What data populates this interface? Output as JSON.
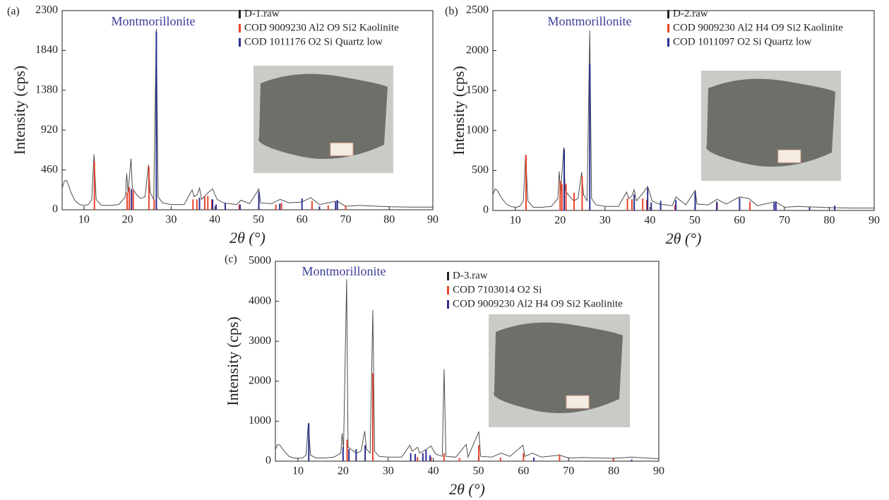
{
  "chart_data": [
    {
      "type": "line",
      "panel": "(a)",
      "annotation": "Montmorillonite",
      "xlabel": "2θ (°)",
      "ylabel": "Intensity (cps)",
      "xlim": [
        5,
        90
      ],
      "xticks": [
        10,
        20,
        30,
        40,
        50,
        60,
        70,
        80,
        90
      ],
      "ylim": [
        0,
        2300
      ],
      "yticks": [
        0,
        460,
        920,
        1380,
        1840,
        2300
      ],
      "series": [
        {
          "name": "D-1.raw",
          "color": "#222222",
          "style": "line",
          "x": [
            5,
            5.5,
            6,
            6.5,
            7,
            8,
            9,
            10,
            11,
            11.8,
            12.3,
            12.8,
            14,
            16,
            18,
            19.5,
            19.8,
            20.1,
            20.8,
            21.1,
            22,
            23,
            24,
            24.8,
            25.2,
            26,
            26.6,
            27,
            28,
            30,
            33,
            34.8,
            35.3,
            36,
            36.5,
            37,
            38.5,
            39.5,
            40.5,
            42,
            45,
            46,
            48,
            50.1,
            50.5,
            53,
            55,
            57,
            60,
            62,
            64,
            68,
            70,
            73,
            80,
            85,
            90
          ],
          "values": [
            250,
            330,
            340,
            280,
            200,
            100,
            60,
            50,
            60,
            120,
            640,
            120,
            50,
            50,
            60,
            150,
            420,
            200,
            590,
            250,
            180,
            130,
            150,
            520,
            200,
            120,
            2090,
            150,
            80,
            60,
            60,
            230,
            150,
            180,
            250,
            120,
            200,
            240,
            120,
            80,
            60,
            110,
            70,
            240,
            80,
            70,
            120,
            80,
            90,
            140,
            60,
            100,
            40,
            50,
            35,
            30,
            30
          ]
        },
        {
          "name": "COD 9009230 Al2 O9 Si2 Kaolinite",
          "color": "#e8432c",
          "style": "stick",
          "x": [
            12.4,
            19.9,
            20.4,
            21.3,
            24.9,
            26.1,
            35,
            35.9,
            37.7,
            38.4,
            39.3,
            45.6,
            54,
            55.3,
            62.3,
            66,
            70
          ],
          "values": [
            560,
            200,
            260,
            220,
            500,
            120,
            120,
            120,
            150,
            160,
            120,
            60,
            60,
            80,
            100,
            50,
            50
          ]
        },
        {
          "name": "COD 1011176 O2 Si Quartz low",
          "color": "#2b2f8f",
          "style": "stick",
          "x": [
            20.9,
            26.6,
            36.5,
            39.5,
            40.3,
            42.4,
            45.8,
            50.1,
            54.9,
            60,
            64,
            67.7,
            68.1
          ],
          "values": [
            240,
            2060,
            140,
            120,
            60,
            80,
            60,
            210,
            70,
            130,
            40,
            90,
            110
          ]
        }
      ]
    },
    {
      "type": "line",
      "panel": "(b)",
      "annotation": "Montmorillonite",
      "xlabel": "2θ (°)",
      "ylabel": "Intensity (cps)",
      "xlim": [
        5,
        90
      ],
      "xticks": [
        10,
        20,
        30,
        40,
        50,
        60,
        70,
        80,
        90
      ],
      "ylim": [
        0,
        2500
      ],
      "yticks": [
        0,
        500,
        1000,
        1500,
        2000,
        2500
      ],
      "series": [
        {
          "name": "D-2.raw",
          "color": "#222222",
          "style": "line",
          "x": [
            5,
            5.5,
            6,
            6.5,
            7,
            8,
            9,
            10,
            11,
            11.8,
            12.3,
            12.8,
            14,
            16,
            18,
            19.5,
            19.8,
            20.1,
            20.8,
            21.1,
            22,
            23,
            24,
            24.8,
            25.2,
            26,
            26.6,
            27,
            28,
            30,
            33,
            34.8,
            35.3,
            36,
            36.5,
            37,
            38.5,
            39.5,
            40.5,
            42,
            45,
            45.8,
            48,
            50.1,
            50.5,
            53,
            55,
            57,
            60,
            62,
            64,
            68,
            70,
            73,
            80,
            85,
            90
          ],
          "values": [
            200,
            270,
            250,
            200,
            150,
            80,
            50,
            40,
            50,
            120,
            700,
            120,
            40,
            40,
            50,
            150,
            490,
            200,
            790,
            250,
            180,
            120,
            150,
            480,
            200,
            120,
            2250,
            150,
            70,
            50,
            50,
            230,
            150,
            180,
            260,
            120,
            220,
            300,
            120,
            80,
            60,
            170,
            70,
            250,
            80,
            70,
            140,
            80,
            170,
            150,
            60,
            110,
            40,
            50,
            35,
            30,
            30
          ]
        },
        {
          "name": "COD 9009230 Al2 H4 O9 Si2 Kaolinite",
          "color": "#e8432c",
          "style": "stick",
          "x": [
            12.4,
            20,
            20.4,
            21.3,
            23.1,
            24.9,
            35,
            36,
            38.4,
            39.3,
            45.6,
            55,
            62.3
          ],
          "values": [
            690,
            370,
            330,
            330,
            220,
            430,
            150,
            140,
            150,
            130,
            70,
            90,
            110
          ]
        },
        {
          "name": "COD 1011097 O2 Si Quartz low",
          "color": "#2b2f8f",
          "style": "stick",
          "x": [
            20.9,
            26.6,
            36.5,
            39.5,
            40.3,
            42.4,
            45.8,
            50.1,
            54.9,
            60,
            67.7,
            68.1,
            75.6,
            81.2
          ],
          "values": [
            770,
            1840,
            200,
            280,
            100,
            120,
            130,
            240,
            110,
            160,
            100,
            110,
            40,
            60
          ]
        }
      ]
    },
    {
      "type": "line",
      "panel": "(c)",
      "annotation": "Montmorillonite",
      "xlabel": "2θ (°)",
      "ylabel": "Intensity (cps)",
      "xlim": [
        5,
        90
      ],
      "xticks": [
        10,
        20,
        30,
        40,
        50,
        60,
        70,
        80,
        90
      ],
      "ylim": [
        0,
        5000
      ],
      "yticks": [
        0,
        1000,
        2000,
        3000,
        4000,
        5000
      ],
      "series": [
        {
          "name": "D-3.raw",
          "color": "#222222",
          "style": "line",
          "x": [
            5,
            5.5,
            6,
            6.5,
            7,
            8,
            9,
            10,
            11,
            11.8,
            12.3,
            12.8,
            14,
            16,
            18,
            19.5,
            19.8,
            20.1,
            20.8,
            21.1,
            22,
            23,
            24,
            24.8,
            25.2,
            26,
            26.6,
            27,
            28,
            30,
            33,
            34.8,
            35.3,
            36,
            36.5,
            37,
            38.5,
            39.5,
            40.5,
            42,
            42.4,
            42.8,
            45,
            47.3,
            47.7,
            50.1,
            50.5,
            53,
            55,
            57,
            59.9,
            60.3,
            62,
            64,
            68,
            70,
            73,
            80,
            84,
            90
          ],
          "values": [
            300,
            420,
            400,
            320,
            250,
            120,
            80,
            70,
            80,
            150,
            950,
            150,
            80,
            80,
            100,
            200,
            700,
            300,
            4550,
            350,
            280,
            200,
            250,
            750,
            300,
            200,
            3780,
            250,
            120,
            100,
            100,
            400,
            250,
            300,
            350,
            200,
            300,
            380,
            180,
            120,
            2300,
            120,
            100,
            420,
            100,
            740,
            120,
            100,
            200,
            120,
            400,
            120,
            200,
            100,
            150,
            80,
            90,
            70,
            100,
            60
          ]
        },
        {
          "name": "COD 7103014 O2 Si",
          "color": "#e8432c",
          "style": "stick",
          "x": [
            20.9,
            26.6,
            36.5,
            39.5,
            42.4,
            45.8,
            50.1,
            54.9,
            60,
            68,
            79.9
          ],
          "values": [
            540,
            2200,
            100,
            100,
            200,
            80,
            400,
            90,
            200,
            170,
            60
          ]
        },
        {
          "name": "COD 9009230 Al2 H4 O9 Si2 Kaolinite",
          "color": "#2b2f8f",
          "style": "stick",
          "x": [
            12.4,
            20,
            21.3,
            22.9,
            24.9,
            35,
            36,
            37.7,
            38.4,
            39.3,
            62.3,
            84
          ],
          "values": [
            950,
            350,
            300,
            300,
            400,
            200,
            180,
            200,
            280,
            150,
            90,
            40
          ]
        }
      ]
    }
  ]
}
